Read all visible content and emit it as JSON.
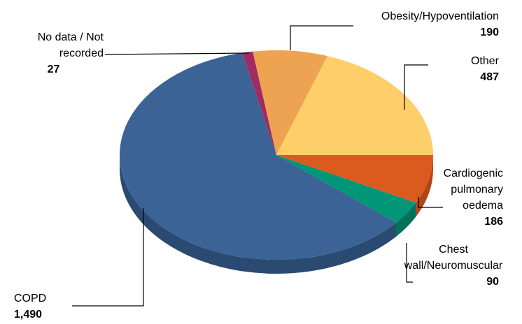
{
  "chart_data": {
    "type": "pie",
    "title": "",
    "slices": [
      {
        "label": "COPD",
        "value": 1490,
        "value_label": "1,490",
        "color": "#3B6395",
        "side": "#2A4A72"
      },
      {
        "label": "No data / Not recorded",
        "value": 27,
        "value_label": "27",
        "color": "#A02A63",
        "side": "#7A1F4B"
      },
      {
        "label": "Obesity/Hypoventilation",
        "value": 190,
        "value_label": "190",
        "color": "#EEA353",
        "side": "#C4823A"
      },
      {
        "label": "Other",
        "value": 487,
        "value_label": "487",
        "color": "#FECF68",
        "side": "#D9AE4E"
      },
      {
        "label": "Cardiogenic pulmonary oedema",
        "value": 186,
        "value_label": "186",
        "color": "#DB5B1E",
        "side": "#B04615"
      },
      {
        "label": "Chest wall/Neuromuscular",
        "value": 90,
        "value_label": "90",
        "color": "#009677",
        "side": "#007259"
      }
    ],
    "legend": "none",
    "style": "3d-pie"
  }
}
